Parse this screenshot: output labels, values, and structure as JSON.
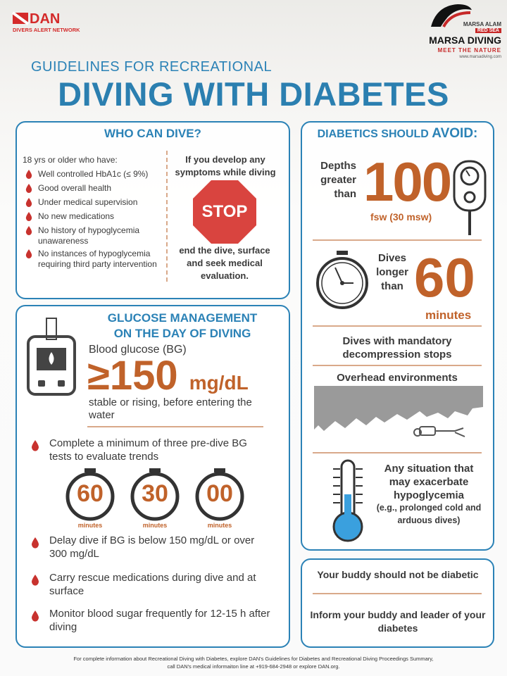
{
  "header": {
    "logo_left": "DAN",
    "logo_left_sub": "DIVERS ALERT NETWORK",
    "logo_right_top": "MARSA ALAM",
    "logo_right_badge": "RED SEA",
    "logo_right_name": "MARSA DIVING",
    "logo_right_tagline": "MEET THE NATURE",
    "logo_right_url": "www.marsadiving.com",
    "subtitle": "GUIDELINES FOR RECREATIONAL",
    "title": "DIVING WITH DIABETES"
  },
  "who_can_dive": {
    "title": "WHO CAN DIVE?",
    "intro": "18 yrs or older who have:",
    "criteria": [
      "Well controlled HbA1c (≤ 9%)",
      "Good overall health",
      "Under medical supervision",
      "No new medications",
      "No history of hypoglycemia unawareness",
      "No instances of hypoglycemia requiring third party intervention"
    ],
    "symptoms": "If you develop any symptoms while diving",
    "stop": "STOP",
    "action": "end the dive, surface and seek medical evaluation."
  },
  "glucose": {
    "title_lines": [
      "GLUCOSE MANAGEMENT",
      "ON THE DAY OF DIVING"
    ],
    "bg_label": "Blood glucose (BG)",
    "symbol": "≥",
    "bg_value": "150",
    "bg_unit": "mg/dL",
    "bg_note": "stable or rising, before entering the water",
    "tests": "Complete a minimum of three pre-dive BG tests to evaluate trends",
    "timers": [
      {
        "value": "60",
        "label": "minutes"
      },
      {
        "value": "30",
        "label": "minutes"
      },
      {
        "value": "00",
        "label": "minutes"
      }
    ],
    "bullets": [
      "Delay dive if BG is below 150 mg/dL or over 300 mg/dL",
      "Carry rescue medications during dive and at surface",
      "Monitor blood sugar frequently for 12-15 h after diving"
    ]
  },
  "avoid": {
    "title": "DIABETICS SHOULD",
    "title_emph": "AVOID:",
    "depth": {
      "label": "Depths greater than",
      "value": "100",
      "unit": "fsw (30 msw)"
    },
    "duration": {
      "label": "Dives longer than",
      "value": "60",
      "unit": "minutes"
    },
    "decompression": "Dives with mandatory decompression stops",
    "overhead": "Overhead environments",
    "situation": {
      "text": "Any situation that may exacerbate hypoglycemia",
      "note": "(e.g., prolonged cold and arduous dives)"
    }
  },
  "buddy": {
    "items": [
      "Your buddy should not be diabetic",
      "Inform your buddy and leader of your diabetes"
    ]
  },
  "footer": {
    "lines": [
      "For complete information about Recreational  Diving with Diabetes, explore DAN's Guidelines for Diabetes and Recreational Diving Proceedings Summary,",
      "call DAN's medical informaiton line at +919-684-2948 or explore DAN.org."
    ]
  }
}
